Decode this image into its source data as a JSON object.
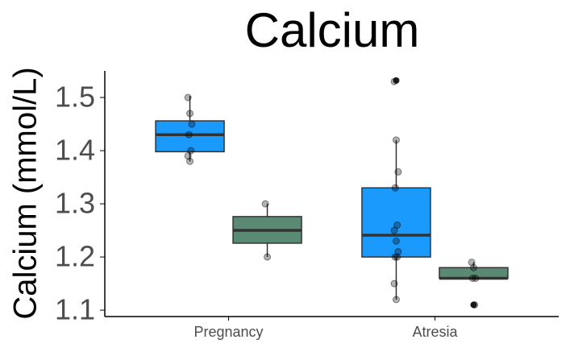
{
  "chart_data": {
    "type": "box",
    "title": "Calcium",
    "y_label": "Calcium (mmol/L)",
    "categories": [
      "Pregnancy",
      "Atresia"
    ],
    "series": [
      {
        "color": "#1a9afc",
        "boxes": [
          {
            "whisker_low": 1.38,
            "q1": 1.398,
            "median": 1.43,
            "q3": 1.456,
            "whisker_high": 1.503,
            "outliers": [],
            "points": [
              1.5,
              1.47,
              1.45,
              1.43,
              1.4,
              1.39,
              1.38
            ]
          },
          {
            "whisker_low": 1.12,
            "q1": 1.2,
            "median": 1.241,
            "q3": 1.33,
            "whisker_high": 1.42,
            "outliers": [
              1.532
            ],
            "points": [
              1.53,
              1.42,
              1.36,
              1.33,
              1.26,
              1.25,
              1.23,
              1.21,
              1.2,
              1.2,
              1.15,
              1.12
            ]
          }
        ]
      },
      {
        "color": "#5a8a74",
        "boxes": [
          {
            "whisker_low": 1.2,
            "q1": 1.226,
            "median": 1.25,
            "q3": 1.276,
            "whisker_high": 1.3,
            "outliers": [],
            "points": [
              1.3,
              1.2
            ]
          },
          {
            "whisker_low": 1.16,
            "q1": 1.16,
            "median": 1.16,
            "q3": 1.18,
            "whisker_high": 1.19,
            "outliers": [
              1.11
            ],
            "points": [
              1.19,
              1.18,
              1.16,
              1.16,
              1.11
            ]
          }
        ]
      }
    ],
    "ylim": [
      1.088,
      1.55
    ],
    "yticks": [
      1.1,
      1.2,
      1.3,
      1.4,
      1.5
    ],
    "grid": false
  }
}
